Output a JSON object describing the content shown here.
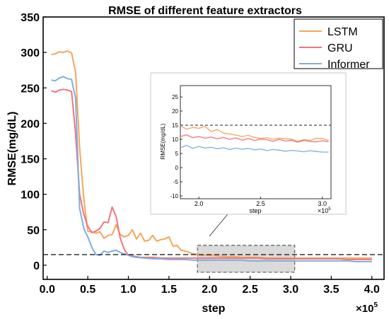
{
  "chart_data": {
    "type": "line",
    "title": "RMSE of different feature extractors",
    "xlabel": "step",
    "x_multiplier": "×10",
    "x_multiplier_exp": "5",
    "ylabel": "RMSE(mg/dL)",
    "xlim": [
      -0.05,
      4.15
    ],
    "ylim": [
      -20,
      350
    ],
    "x_ticks": [
      "0.0",
      "0.5",
      "1.0",
      "1.5",
      "2.0",
      "2.5",
      "3.0",
      "3.5",
      "4.0"
    ],
    "x_tick_values": [
      0.0,
      0.5,
      1.0,
      1.5,
      2.0,
      2.5,
      3.0,
      3.5,
      4.0
    ],
    "y_ticks": [
      "0",
      "50",
      "100",
      "150",
      "200",
      "250",
      "300",
      "350"
    ],
    "y_tick_values": [
      0,
      50,
      100,
      150,
      200,
      250,
      300,
      350
    ],
    "reference_line": {
      "y": 15,
      "style": "dashed",
      "color": "#222222"
    },
    "zoom_region": {
      "x_range": [
        1.85,
        3.05
      ],
      "y_range": [
        -10,
        28
      ]
    },
    "legend": {
      "position": "top-right",
      "entries": [
        "LSTM",
        "GRU",
        "Informer"
      ]
    },
    "series": [
      {
        "name": "LSTM",
        "color": "#F5A55C",
        "x": [
          0.05,
          0.1,
          0.15,
          0.2,
          0.25,
          0.3,
          0.35,
          0.4,
          0.45,
          0.5,
          0.55,
          0.6,
          0.65,
          0.7,
          0.75,
          0.8,
          0.85,
          0.9,
          0.95,
          1.0,
          1.05,
          1.1,
          1.15,
          1.2,
          1.25,
          1.3,
          1.35,
          1.4,
          1.45,
          1.5,
          1.55,
          1.6,
          1.65,
          1.7,
          1.75,
          1.8,
          1.9,
          2.0,
          2.1,
          2.2,
          2.3,
          2.4,
          2.5,
          2.6,
          2.7,
          2.8,
          2.9,
          3.0,
          3.1,
          3.2,
          3.3,
          3.4,
          3.5,
          3.6,
          3.7,
          3.8,
          3.9,
          4.0
        ],
        "y": [
          297,
          298,
          301,
          300,
          302,
          299,
          272,
          165,
          95,
          48,
          47,
          45,
          47,
          38,
          42,
          43,
          57,
          43,
          40,
          42,
          50,
          37,
          45,
          34,
          35,
          42,
          34,
          36,
          37,
          40,
          27,
          28,
          21,
          20,
          18,
          16,
          14,
          14,
          13,
          12,
          12,
          11,
          11,
          11,
          10,
          10,
          10,
          10,
          10,
          10,
          10,
          10,
          10,
          10,
          10,
          10,
          10,
          10
        ]
      },
      {
        "name": "GRU",
        "color": "#F2747C",
        "x": [
          0.05,
          0.1,
          0.15,
          0.2,
          0.25,
          0.3,
          0.35,
          0.4,
          0.45,
          0.5,
          0.55,
          0.6,
          0.65,
          0.7,
          0.75,
          0.8,
          0.85,
          0.9,
          0.95,
          1.0,
          1.05,
          1.1,
          1.15,
          1.2,
          1.3,
          1.4,
          1.5,
          1.6,
          1.7,
          1.8,
          1.9,
          2.0,
          2.1,
          2.2,
          2.3,
          2.4,
          2.5,
          2.6,
          2.7,
          2.8,
          2.9,
          3.0,
          3.1,
          3.2,
          3.3,
          3.4,
          3.5,
          3.6,
          3.7,
          3.8,
          3.9,
          4.0
        ],
        "y": [
          246,
          244,
          247,
          248,
          247,
          245,
          185,
          100,
          72,
          55,
          46,
          48,
          52,
          61,
          60,
          82,
          68,
          38,
          22,
          14,
          13,
          12,
          11,
          11,
          11,
          10,
          10,
          10,
          10,
          10,
          10,
          10,
          10,
          10,
          10,
          10,
          10,
          10,
          9,
          9,
          9,
          9,
          9,
          9,
          9,
          9,
          9,
          9,
          8,
          8,
          8,
          8
        ]
      },
      {
        "name": "Informer",
        "color": "#7FAEE0",
        "x": [
          0.05,
          0.1,
          0.15,
          0.2,
          0.25,
          0.3,
          0.35,
          0.4,
          0.45,
          0.5,
          0.55,
          0.6,
          0.65,
          0.7,
          0.75,
          0.8,
          0.85,
          0.9,
          0.95,
          1.0,
          1.05,
          1.1,
          1.2,
          1.3,
          1.4,
          1.5,
          1.6,
          1.7,
          1.8,
          1.9,
          2.0,
          2.1,
          2.2,
          2.3,
          2.4,
          2.5,
          2.6,
          2.7,
          2.8,
          2.9,
          3.0,
          3.1,
          3.2,
          3.3,
          3.4,
          3.5,
          3.6,
          3.7,
          3.8,
          3.9,
          4.0
        ],
        "y": [
          261,
          260,
          264,
          266,
          263,
          262,
          235,
          80,
          52,
          40,
          25,
          15,
          14,
          20,
          18,
          20,
          21,
          18,
          16,
          14,
          12,
          11,
          10,
          9,
          9,
          8,
          8,
          8,
          7,
          7,
          7,
          7,
          7,
          7,
          7,
          6,
          6,
          6,
          6,
          6,
          6,
          6,
          6,
          6,
          6,
          6,
          6,
          6,
          5,
          5,
          5
        ]
      }
    ],
    "inset": {
      "xlabel": "step",
      "x_multiplier": "×10",
      "x_multiplier_exp": "5",
      "ylabel": "RMSE(mg/dL)",
      "xlim": [
        1.85,
        3.07
      ],
      "ylim": [
        -11,
        29
      ],
      "x_ticks": [
        "2.0",
        "2.5",
        "3.0"
      ],
      "x_tick_values": [
        2.0,
        2.5,
        3.0
      ],
      "y_ticks": [
        "-10",
        "-5",
        "0",
        "5",
        "10",
        "15",
        "20",
        "25"
      ],
      "y_tick_values": [
        -10,
        -5,
        0,
        5,
        10,
        15,
        20,
        25
      ],
      "reference_line": {
        "y": 15,
        "style": "dashed",
        "color": "#222222"
      },
      "series": [
        {
          "name": "LSTM",
          "color": "#F5A55C",
          "x": [
            1.85,
            1.9,
            1.95,
            2.0,
            2.05,
            2.1,
            2.15,
            2.2,
            2.25,
            2.3,
            2.35,
            2.4,
            2.45,
            2.5,
            2.55,
            2.6,
            2.65,
            2.7,
            2.75,
            2.8,
            2.85,
            2.9,
            2.95,
            3.0,
            3.05
          ],
          "y": [
            14.8,
            13.6,
            14.2,
            13.9,
            14.6,
            12.7,
            13.5,
            12.2,
            11.9,
            11.5,
            11.0,
            11.4,
            10.7,
            10.3,
            10.6,
            10.0,
            10.4,
            10.2,
            10.1,
            9.3,
            9.9,
            9.6,
            10.4,
            10.3,
            9.6
          ]
        },
        {
          "name": "GRU",
          "color": "#F2747C",
          "x": [
            1.85,
            1.9,
            1.95,
            2.0,
            2.05,
            2.1,
            2.15,
            2.2,
            2.25,
            2.3,
            2.35,
            2.4,
            2.45,
            2.5,
            2.55,
            2.6,
            2.65,
            2.7,
            2.75,
            2.8,
            2.85,
            2.9,
            2.95,
            3.0,
            3.05
          ],
          "y": [
            11.0,
            11.6,
            10.6,
            11.0,
            10.4,
            10.8,
            10.2,
            10.7,
            10.0,
            10.5,
            9.7,
            10.3,
            9.6,
            10.1,
            9.9,
            9.3,
            10.0,
            9.4,
            9.7,
            9.0,
            9.6,
            9.3,
            9.1,
            9.5,
            9.2
          ]
        },
        {
          "name": "Informer",
          "color": "#7FAEE0",
          "x": [
            1.85,
            1.9,
            1.95,
            2.0,
            2.05,
            2.1,
            2.15,
            2.2,
            2.25,
            2.3,
            2.35,
            2.4,
            2.45,
            2.5,
            2.55,
            2.6,
            2.65,
            2.7,
            2.75,
            2.8,
            2.85,
            2.9,
            2.95,
            3.0,
            3.05
          ],
          "y": [
            7.0,
            7.9,
            6.8,
            7.5,
            6.9,
            7.2,
            6.7,
            7.0,
            6.4,
            6.9,
            6.5,
            6.8,
            6.3,
            6.6,
            6.0,
            6.4,
            6.2,
            5.8,
            6.1,
            5.9,
            5.6,
            6.0,
            5.7,
            5.5,
            5.5
          ]
        }
      ]
    }
  }
}
